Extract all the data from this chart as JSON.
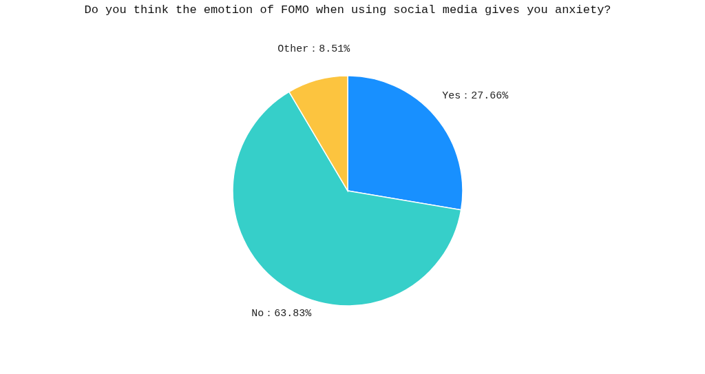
{
  "chart_data": {
    "type": "pie",
    "title": "Do you think the emotion of FOMO when using social media gives you anxiety?",
    "categories": [
      "Yes",
      "No",
      "Other"
    ],
    "values": [
      27.66,
      63.83,
      8.51
    ],
    "colors": [
      "#1890ff",
      "#36cfc9",
      "#fcc43f"
    ],
    "value_labels": [
      "：27.66%",
      "：63.83%",
      "：8.51%"
    ],
    "legend": false
  }
}
